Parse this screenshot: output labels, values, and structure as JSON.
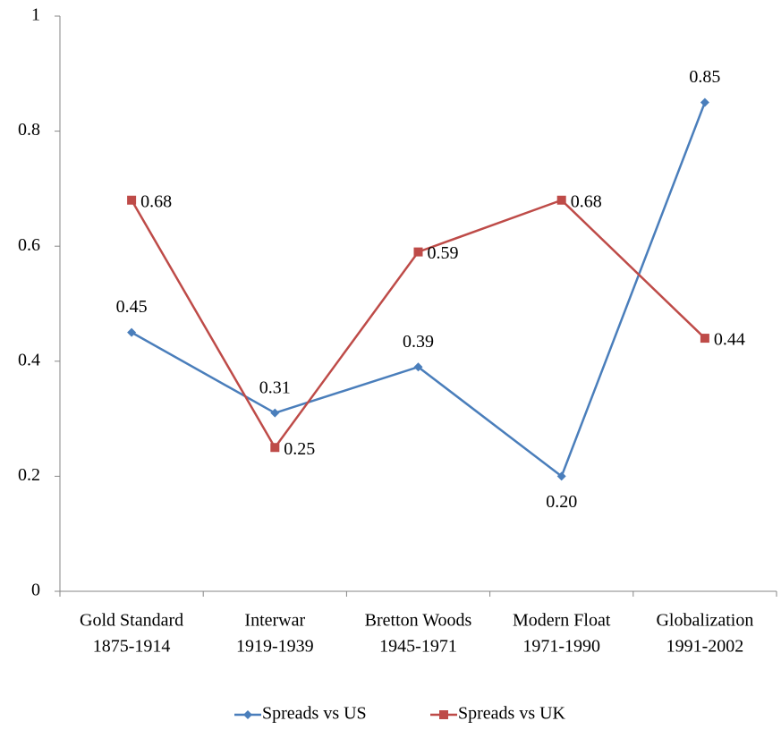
{
  "chart_data": {
    "type": "line",
    "categories": [
      [
        "Gold Standard",
        "1875-1914"
      ],
      [
        "Interwar",
        "1919-1939"
      ],
      [
        "Bretton Woods",
        "1945-1971"
      ],
      [
        "Modern Float",
        "1971-1990"
      ],
      [
        "Globalization",
        "1991-2002"
      ]
    ],
    "series": [
      {
        "name": "Spreads vs US",
        "color": "#4a7ebb",
        "marker": "diamond",
        "values": [
          0.45,
          0.31,
          0.39,
          0.2,
          0.85
        ],
        "value_labels": [
          "0.45",
          "0.31",
          "0.39",
          "0.20",
          "0.85"
        ]
      },
      {
        "name": "Spreads vs UK",
        "color": "#be4b48",
        "marker": "square",
        "values": [
          0.68,
          0.25,
          0.59,
          0.68,
          0.44
        ],
        "value_labels": [
          "0.68",
          "0.25",
          "0.59",
          "0.68",
          "0.44"
        ]
      }
    ],
    "ylim": [
      0,
      1
    ],
    "yticks": [
      0,
      0.2,
      0.4,
      0.6,
      0.8,
      1
    ],
    "grid": false,
    "legend": "bottom"
  }
}
